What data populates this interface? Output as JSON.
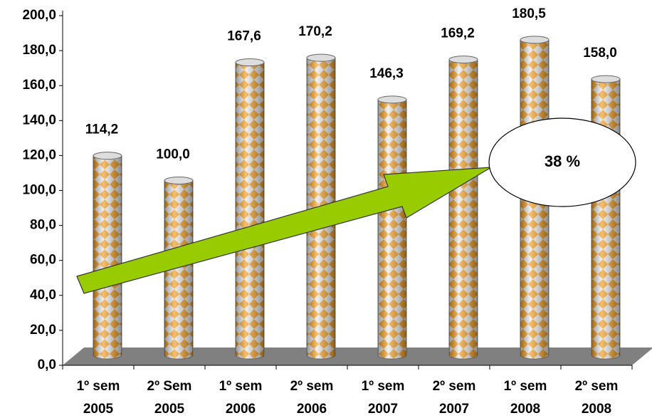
{
  "chart_data": {
    "type": "bar",
    "categories": [
      "1º sem 2005",
      "2º Sem 2005",
      "1º sem 2006",
      "2º sem 2006",
      "1º sem 2007",
      "2º sem 2007",
      "1º sem 2008",
      "2º sem 2008"
    ],
    "values": [
      114.2,
      100.0,
      167.6,
      170.2,
      146.3,
      169.2,
      180.5,
      158.0
    ],
    "value_labels": [
      "114,2",
      "100,0",
      "167,6",
      "170,2",
      "146,3",
      "169,2",
      "180,5",
      "158,0"
    ],
    "color": "#f39c1c",
    "ylim": [
      0,
      200
    ],
    "yticks": [
      {
        "value": 0,
        "label": "0,0"
      },
      {
        "value": 20,
        "label": "20,0"
      },
      {
        "value": 40,
        "label": "40,0"
      },
      {
        "value": 60,
        "label": "60,0"
      },
      {
        "value": 80,
        "label": "80,0"
      },
      {
        "value": 100,
        "label": "100,0"
      },
      {
        "value": 120,
        "label": "120,0"
      },
      {
        "value": 140,
        "label": "140,0"
      },
      {
        "value": 160,
        "label": "160,0"
      },
      {
        "value": 180,
        "label": "180,0"
      },
      {
        "value": 200,
        "label": "200,0"
      }
    ],
    "annotation": "38 %"
  }
}
